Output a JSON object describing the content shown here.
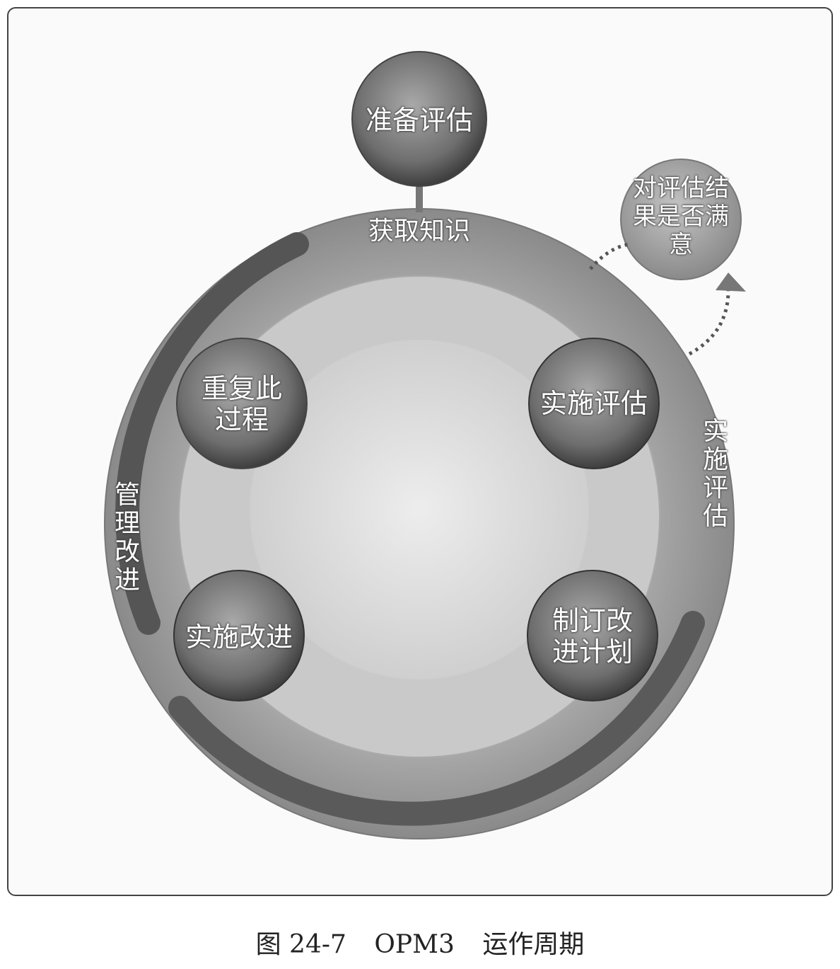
{
  "diagram": {
    "top_node": "准备评估",
    "ring_top_label": "获取知识",
    "side_node": "对评估结果是否满意",
    "nodes": {
      "repeat": "重复此过程",
      "execute_eval": "实施评估",
      "implement": "实施改进",
      "plan": "制订改进计划"
    },
    "arc_labels": {
      "left": "管理改进",
      "right": "实施评估"
    }
  },
  "caption": {
    "fig_no": "图 24-7",
    "title": "OPM3",
    "subtitle": "运作周期"
  }
}
